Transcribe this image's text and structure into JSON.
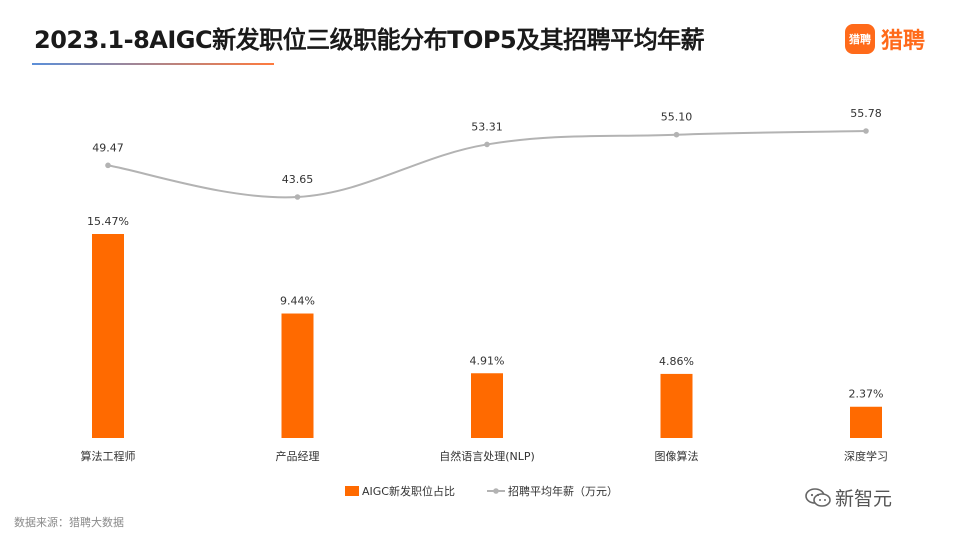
{
  "header": {
    "title": "2023.1-8AIGC新发职位三级职能分布TOP5及其招聘平均年薪",
    "logo_badge": "猎聘",
    "logo_text": "猎聘"
  },
  "footer": {
    "source": "数据来源：猎聘大数据",
    "watermark": "新智元"
  },
  "colors": {
    "bar": "#ff6a00",
    "line": "#b3b3b3",
    "brand": "#ff6a1a"
  },
  "chart_data": {
    "type": "bar",
    "categories": [
      "算法工程师",
      "产品经理",
      "自然语言处理(NLP)",
      "图像算法",
      "深度学习"
    ],
    "series": [
      {
        "name": "AIGC新发职位占比",
        "kind": "bar",
        "values": [
          15.47,
          9.44,
          4.91,
          4.86,
          2.37
        ],
        "labels": [
          "15.47%",
          "9.44%",
          "4.91%",
          "4.86%",
          "2.37%"
        ]
      },
      {
        "name": "招聘平均年薪（万元）",
        "kind": "line",
        "values": [
          49.47,
          43.65,
          53.31,
          55.1,
          55.78
        ],
        "labels": [
          "49.47",
          "43.65",
          "53.31",
          "55.10",
          "55.78"
        ]
      }
    ],
    "legend": "bottom-center",
    "grid": false
  }
}
